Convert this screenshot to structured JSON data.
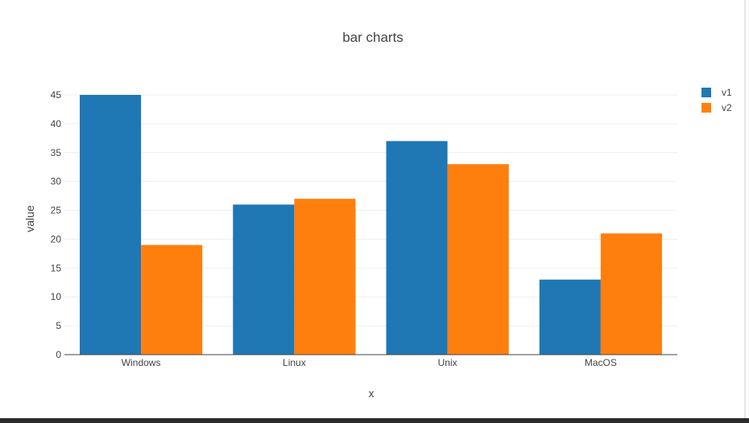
{
  "chart_data": {
    "type": "bar",
    "title": "bar charts",
    "xlabel": "x",
    "ylabel": "value",
    "categories": [
      "Windows",
      "Linux",
      "Unix",
      "MacOS"
    ],
    "series": [
      {
        "name": "v1",
        "values": [
          45,
          26,
          37,
          13
        ],
        "color": "#1f77b4"
      },
      {
        "name": "v2",
        "values": [
          19,
          27,
          33,
          21
        ],
        "color": "#ff7f0e"
      }
    ],
    "ylim": [
      0,
      45
    ],
    "yticks": [
      0,
      5,
      10,
      15,
      20,
      25,
      30,
      35,
      40,
      45
    ],
    "grid": true,
    "legend": "top-right"
  }
}
